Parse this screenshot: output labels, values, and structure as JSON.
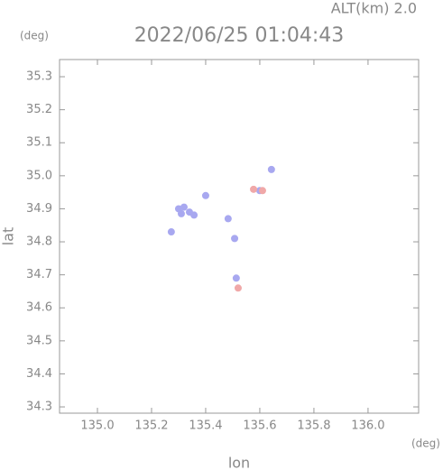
{
  "chart_data": {
    "type": "scatter",
    "title": "2022/06/25 01:04:43",
    "subtitle": "ALT(km) 2.0",
    "x_label": "lon",
    "y_label": "lat",
    "x_unit": "(deg)",
    "y_unit": "(deg)",
    "xlim": [
      134.86,
      136.187
    ],
    "ylim": [
      34.281,
      35.352
    ],
    "xticks": [
      {
        "value": 135,
        "label": "135.0"
      },
      135.2,
      135.4,
      135.6,
      135.8,
      {
        "value": 136,
        "label": "136.0"
      }
    ],
    "yticks": [
      34.3,
      34.4,
      34.5,
      34.6,
      34.7,
      34.8,
      34.9,
      {
        "value": 35,
        "label": "35.0"
      },
      35.1,
      35.2,
      35.3
    ],
    "series": [
      {
        "color": "#a8a8f0",
        "x": [
          135.3,
          135.32,
          135.34,
          135.357,
          135.31,
          135.273,
          135.4,
          135.483,
          135.507,
          135.513,
          135.643,
          135.6
        ],
        "values": [
          34.9,
          34.905,
          34.89,
          34.881,
          34.885,
          34.83,
          34.94,
          34.87,
          34.81,
          34.69,
          35.019,
          34.955
        ]
      },
      {
        "color": "#f0a8a8",
        "x": [
          135.577,
          135.61,
          135.52
        ],
        "values": [
          34.959,
          34.955,
          34.66
        ]
      }
    ]
  }
}
